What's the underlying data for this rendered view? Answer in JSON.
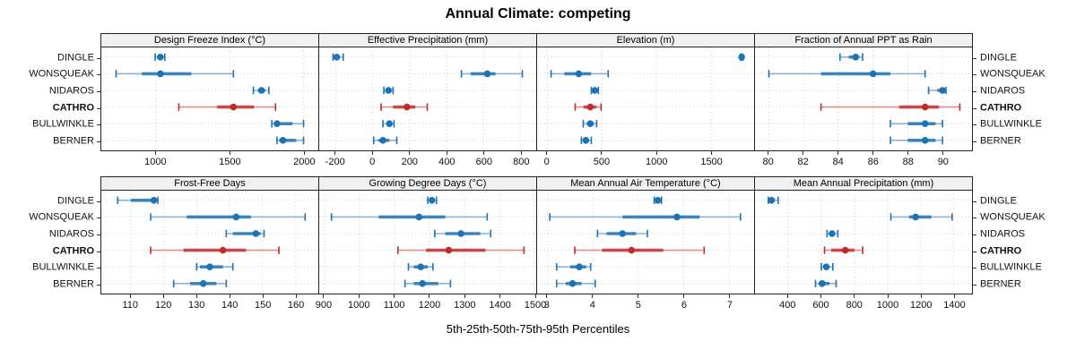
{
  "title": "Annual Climate: competing",
  "footer_label": "5th-25th-50th-75th-95th Percentiles",
  "stations": [
    "DINGLE",
    "WONSQUEAK",
    "NIDAROS",
    "CATHRO",
    "BULLWINKLE",
    "BERNER"
  ],
  "highlight_station": "CATHRO",
  "percentiles": [
    "5th",
    "25th",
    "50th",
    "75th",
    "95th"
  ],
  "colors": {
    "series": "#1b72b4",
    "highlight": "#bf2b2b",
    "strip_bg": "#f0f0f0",
    "grid": "#c9c9c9",
    "border": "#222222"
  },
  "chart_data": [
    {
      "type": "dotplot",
      "title": "Design Freeze Index (°C)",
      "xlim": [
        630,
        2100
      ],
      "ticks": [
        1000,
        1500,
        2000
      ],
      "series": [
        {
          "name": "DINGLE",
          "values": [
            995,
            1015,
            1030,
            1045,
            1060
          ]
        },
        {
          "name": "WONSQUEAK",
          "values": [
            730,
            905,
            1030,
            1240,
            1525
          ]
        },
        {
          "name": "NIDAROS",
          "values": [
            1660,
            1690,
            1715,
            1740,
            1765
          ]
        },
        {
          "name": "CATHRO",
          "values": [
            1155,
            1415,
            1525,
            1665,
            1810
          ]
        },
        {
          "name": "BULLWINKLE",
          "values": [
            1785,
            1800,
            1820,
            1925,
            2000
          ]
        },
        {
          "name": "BERNER",
          "values": [
            1820,
            1835,
            1860,
            1950,
            2000
          ]
        }
      ]
    },
    {
      "type": "dotplot",
      "title": "Effective Precipitation (mm)",
      "xlim": [
        -290,
        885
      ],
      "ticks": [
        -200,
        0,
        200,
        400,
        600,
        800
      ],
      "series": [
        {
          "name": "DINGLE",
          "values": [
            -215,
            -205,
            -195,
            -180,
            -160
          ]
        },
        {
          "name": "WONSQUEAK",
          "values": [
            480,
            530,
            620,
            665,
            810
          ]
        },
        {
          "name": "NIDAROS",
          "values": [
            60,
            75,
            85,
            95,
            110
          ]
        },
        {
          "name": "CATHRO",
          "values": [
            45,
            110,
            185,
            230,
            295
          ]
        },
        {
          "name": "BULLWINKLE",
          "values": [
            55,
            75,
            90,
            100,
            115
          ]
        },
        {
          "name": "BERNER",
          "values": [
            5,
            30,
            55,
            90,
            130
          ]
        }
      ]
    },
    {
      "type": "dotplot",
      "title": "Elevation (m)",
      "xlim": [
        -95,
        1895
      ],
      "ticks": [
        0,
        500,
        1000,
        1500
      ],
      "series": [
        {
          "name": "DINGLE",
          "values": [
            1770,
            1776,
            1781,
            1786,
            1792
          ]
        },
        {
          "name": "WONSQUEAK",
          "values": [
            33,
            155,
            287,
            400,
            557
          ]
        },
        {
          "name": "NIDAROS",
          "values": [
            402,
            420,
            434,
            450,
            467
          ]
        },
        {
          "name": "CATHRO",
          "values": [
            254,
            330,
            393,
            450,
            492
          ]
        },
        {
          "name": "BULLWINKLE",
          "values": [
            328,
            360,
            393,
            425,
            451
          ]
        },
        {
          "name": "BERNER",
          "values": [
            311,
            330,
            352,
            375,
            402
          ]
        }
      ]
    },
    {
      "type": "dotplot",
      "title": "Fraction of Annual PPT as Rain",
      "xlim": [
        79.2,
        91.7
      ],
      "ticks": [
        80,
        82,
        84,
        86,
        88,
        90
      ],
      "series": [
        {
          "name": "DINGLE",
          "values": [
            84.1,
            84.6,
            85.0,
            85.2,
            85.4
          ]
        },
        {
          "name": "WONSQUEAK",
          "values": [
            80,
            83,
            86,
            87,
            89
          ]
        },
        {
          "name": "NIDAROS",
          "values": [
            89.2,
            89.7,
            90.0,
            90.1,
            90.2
          ]
        },
        {
          "name": "CATHRO",
          "values": [
            83,
            87.5,
            89,
            89.8,
            91
          ]
        },
        {
          "name": "BULLWINKLE",
          "values": [
            87,
            88,
            89,
            89.6,
            90
          ]
        },
        {
          "name": "BERNER",
          "values": [
            87,
            88,
            89,
            89.6,
            90
          ]
        }
      ]
    },
    {
      "type": "dotplot",
      "title": "Frost-Free Days",
      "xlim": [
        101,
        167
      ],
      "ticks": [
        110,
        120,
        130,
        140,
        150,
        160
      ],
      "series": [
        {
          "name": "DINGLE",
          "values": [
            106,
            110,
            117,
            117.6,
            118.2
          ]
        },
        {
          "name": "WONSQUEAK",
          "values": [
            116,
            127,
            142,
            146.5,
            163
          ]
        },
        {
          "name": "NIDAROS",
          "values": [
            139,
            141,
            148,
            149.5,
            150.5
          ]
        },
        {
          "name": "CATHRO",
          "values": [
            116,
            126,
            138,
            145,
            155
          ]
        },
        {
          "name": "BULLWINKLE",
          "values": [
            130,
            131,
            134,
            138,
            141
          ]
        },
        {
          "name": "BERNER",
          "values": [
            123,
            128,
            132,
            136,
            139
          ]
        }
      ]
    },
    {
      "type": "dotplot",
      "title": "Growing Degree Days (°C)",
      "xlim": [
        885,
        1505
      ],
      "ticks": [
        900,
        1000,
        1100,
        1200,
        1300,
        1400,
        1500
      ],
      "series": [
        {
          "name": "DINGLE",
          "values": [
            1195,
            1200,
            1207,
            1213,
            1220
          ]
        },
        {
          "name": "WONSQUEAK",
          "values": [
            920,
            1055,
            1170,
            1245,
            1365
          ]
        },
        {
          "name": "NIDAROS",
          "values": [
            1215,
            1245,
            1290,
            1345,
            1375
          ]
        },
        {
          "name": "CATHRO",
          "values": [
            1110,
            1190,
            1255,
            1360,
            1470
          ]
        },
        {
          "name": "BULLWINKLE",
          "values": [
            1140,
            1155,
            1175,
            1195,
            1210
          ]
        },
        {
          "name": "BERNER",
          "values": [
            1130,
            1155,
            1180,
            1225,
            1260
          ]
        }
      ]
    },
    {
      "type": "dotplot",
      "title": "Mean Annual Air Temperature (°C)",
      "xlim": [
        2.77,
        7.55
      ],
      "ticks": [
        3,
        4,
        5,
        6,
        7
      ],
      "series": [
        {
          "name": "DINGLE",
          "values": [
            5.35,
            5.39,
            5.43,
            5.47,
            5.51
          ]
        },
        {
          "name": "WONSQUEAK",
          "values": [
            3.05,
            4.65,
            5.85,
            6.35,
            7.25
          ]
        },
        {
          "name": "NIDAROS",
          "values": [
            4.1,
            4.3,
            4.65,
            4.95,
            5.2
          ]
        },
        {
          "name": "CATHRO",
          "values": [
            3.6,
            4.2,
            4.85,
            5.55,
            6.45
          ]
        },
        {
          "name": "BULLWINKLE",
          "values": [
            3.2,
            3.5,
            3.7,
            3.85,
            3.95
          ]
        },
        {
          "name": "BERNER",
          "values": [
            3.2,
            3.4,
            3.55,
            3.75,
            4.05
          ]
        }
      ]
    },
    {
      "type": "dotplot",
      "title": "Mean Annual Precipitation (mm)",
      "xlim": [
        200,
        1510
      ],
      "ticks": [
        400,
        600,
        800,
        1000,
        1200,
        1400
      ],
      "series": [
        {
          "name": "DINGLE",
          "values": [
            280,
            290,
            300,
            320,
            340
          ]
        },
        {
          "name": "WONSQUEAK",
          "values": [
            1020,
            1130,
            1170,
            1265,
            1390
          ]
        },
        {
          "name": "NIDAROS",
          "values": [
            635,
            650,
            665,
            680,
            700
          ]
        },
        {
          "name": "CATHRO",
          "values": [
            620,
            660,
            745,
            800,
            850
          ]
        },
        {
          "name": "BULLWINKLE",
          "values": [
            600,
            615,
            630,
            650,
            670
          ]
        },
        {
          "name": "BERNER",
          "values": [
            565,
            585,
            605,
            650,
            690
          ]
        }
      ]
    }
  ]
}
